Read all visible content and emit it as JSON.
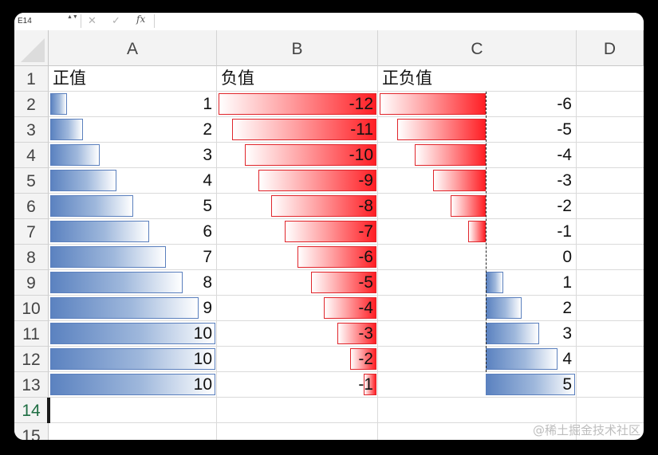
{
  "formula_bar": {
    "name_box": "E14",
    "name_box_arrows": "▲▼",
    "cancel": "✕",
    "enter": "✓",
    "fx": "fx",
    "formula": ""
  },
  "columns": [
    "A",
    "B",
    "C",
    "D"
  ],
  "rows": [
    "1",
    "2",
    "3",
    "4",
    "5",
    "6",
    "7",
    "8",
    "9",
    "10",
    "11",
    "12",
    "13",
    "14",
    "15"
  ],
  "headers": {
    "a": "正值",
    "b": "负值",
    "c": "正负值"
  },
  "data": {
    "a": [
      1,
      2,
      3,
      4,
      5,
      6,
      7,
      8,
      9,
      10,
      10,
      10
    ],
    "b": [
      -12,
      -11,
      -10,
      -9,
      -8,
      -7,
      -6,
      -5,
      -4,
      -3,
      -2,
      -1
    ],
    "c": [
      -6,
      -5,
      -4,
      -3,
      -2,
      -1,
      0,
      1,
      2,
      3,
      4,
      5
    ]
  },
  "colors": {
    "positive_bar": "#5b82c0",
    "negative_bar": "#ff1f25"
  },
  "watermark": "@稀土掘金技术社区"
}
